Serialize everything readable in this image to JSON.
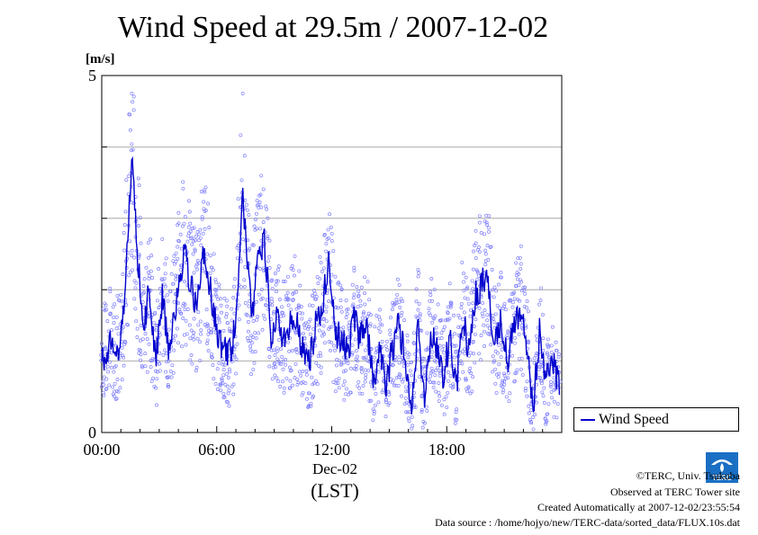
{
  "title": "Wind Speed at 29.5m / 2007-12-02",
  "legend": {
    "label": "Wind Speed"
  },
  "x_axis": {
    "date_label": "Dec-02",
    "zone_label": "(LST)"
  },
  "footer": {
    "copyright": "©TERC, Univ. Tsukuba",
    "site": "Observed at TERC Tower site",
    "created": "Created Automatically at 2007-12-02/23:55:54",
    "source": "Data source : /home/hojyo/new/TERC-data/sorted_data/FLUX.10s.dat"
  },
  "logo": {
    "icon": "terc-logo-icon",
    "text": "TERC"
  },
  "colors": {
    "series": "#0000cc",
    "points": "#8080ff",
    "grid": "#999999"
  },
  "chart_data": {
    "type": "line",
    "title": "Wind Speed at 29.5m / 2007-12-02",
    "ylabel": "[m/s]",
    "xlabel": "",
    "ylim": [
      0,
      5
    ],
    "xlim_hours": [
      0,
      24
    ],
    "yticks": [
      "0",
      "5"
    ],
    "xticks": [
      "00:00",
      "06:00",
      "12:00",
      "18:00"
    ],
    "grid": true,
    "legend": "outside-right",
    "series": [
      {
        "name": "Wind Speed",
        "style": "line with scattered sample points",
        "x": [
          "00:00",
          "00:30",
          "01:00",
          "01:20",
          "01:35",
          "01:50",
          "02:10",
          "02:30",
          "02:50",
          "03:10",
          "03:30",
          "04:00",
          "04:20",
          "04:40",
          "05:00",
          "05:20",
          "05:40",
          "06:00",
          "06:20",
          "06:40",
          "07:00",
          "07:20",
          "07:40",
          "07:50",
          "08:10",
          "08:30",
          "08:50",
          "09:10",
          "09:30",
          "09:50",
          "10:10",
          "10:30",
          "10:50",
          "11:10",
          "11:30",
          "11:50",
          "12:10",
          "12:30",
          "12:50",
          "13:10",
          "13:30",
          "13:50",
          "14:10",
          "14:30",
          "14:50",
          "15:10",
          "15:30",
          "15:50",
          "16:10",
          "16:30",
          "16:50",
          "17:10",
          "17:30",
          "17:50",
          "18:10",
          "18:30",
          "18:50",
          "19:10",
          "19:30",
          "19:50",
          "20:10",
          "20:30",
          "20:50",
          "21:10",
          "21:30",
          "21:50",
          "22:10",
          "22:30",
          "22:50",
          "23:10",
          "23:30",
          "23:55"
        ],
        "values": [
          1.0,
          1.3,
          1.2,
          2.6,
          3.9,
          2.6,
          1.5,
          2.0,
          1.0,
          1.9,
          1.2,
          2.0,
          2.5,
          2.0,
          1.8,
          2.5,
          2.0,
          1.4,
          1.2,
          1.1,
          1.5,
          3.4,
          2.2,
          1.6,
          2.5,
          2.7,
          1.4,
          1.6,
          1.3,
          1.5,
          1.6,
          1.1,
          1.0,
          1.5,
          1.7,
          2.4,
          1.4,
          1.3,
          1.1,
          1.6,
          1.3,
          1.5,
          0.7,
          1.2,
          0.6,
          1.2,
          1.5,
          1.0,
          0.4,
          1.5,
          0.5,
          1.4,
          1.2,
          0.8,
          1.3,
          0.6,
          1.7,
          1.1,
          1.9,
          2.1,
          2.1,
          1.2,
          1.6,
          1.0,
          1.5,
          1.7,
          1.2,
          0.3,
          1.4,
          0.7,
          1.0,
          0.6
        ]
      }
    ]
  }
}
